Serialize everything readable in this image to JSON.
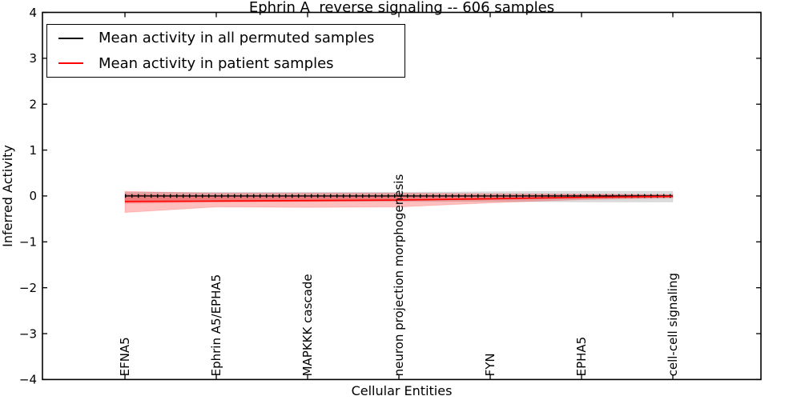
{
  "colors": {
    "permuted_line": "#000000",
    "patient_line": "#ff0000",
    "permuted_band": "#b0b0b0",
    "patient_band": "#ff0000",
    "frame": "#000000"
  },
  "chart_data": {
    "type": "line",
    "title": "Ephrin A  reverse signaling -- 606 samples",
    "xlabel": "Cellular Entities",
    "ylabel": "Inferred Activity",
    "ylim": [
      -4,
      4
    ],
    "yticks": [
      4,
      3,
      2,
      1,
      0,
      -1,
      -2,
      -3,
      -4
    ],
    "grid": false,
    "legend_position": "upper left",
    "categories": [
      "EFNA5",
      "Ephrin A5/EPHA5",
      "MAPKKK cascade",
      "neuron projection morphogenesis",
      "FYN",
      "EPHA5",
      "cell-cell signaling"
    ],
    "series": [
      {
        "name": "Mean activity in all permuted samples",
        "color": "#000000",
        "line_style": "solid with small tick markers",
        "values": [
          0,
          0,
          0,
          0,
          0,
          0,
          0
        ],
        "band_upper": [
          0.08,
          0.08,
          0.08,
          0.08,
          0.09,
          0.1,
          0.1
        ],
        "band_lower": [
          -0.12,
          -0.12,
          -0.12,
          -0.12,
          -0.12,
          -0.13,
          -0.13
        ],
        "band_color": "#b0b0b0"
      },
      {
        "name": "Mean activity in patient samples",
        "color": "#ff0000",
        "line_style": "solid",
        "values": [
          -0.12,
          -0.11,
          -0.1,
          -0.09,
          -0.06,
          -0.03,
          -0.01
        ],
        "band_upper": [
          0.1,
          0.06,
          0.06,
          0.06,
          0.05,
          0.04,
          0.03
        ],
        "band_lower": [
          -0.36,
          -0.24,
          -0.25,
          -0.24,
          -0.15,
          -0.08,
          -0.04
        ],
        "band_inner_upper": [
          0.03,
          0.01,
          0.01,
          0.01,
          0.01,
          0.02,
          0.02
        ],
        "band_inner_lower": [
          -0.16,
          -0.13,
          -0.12,
          -0.1,
          -0.08,
          -0.05,
          -0.03
        ],
        "band_color": "#ff0000"
      }
    ]
  }
}
